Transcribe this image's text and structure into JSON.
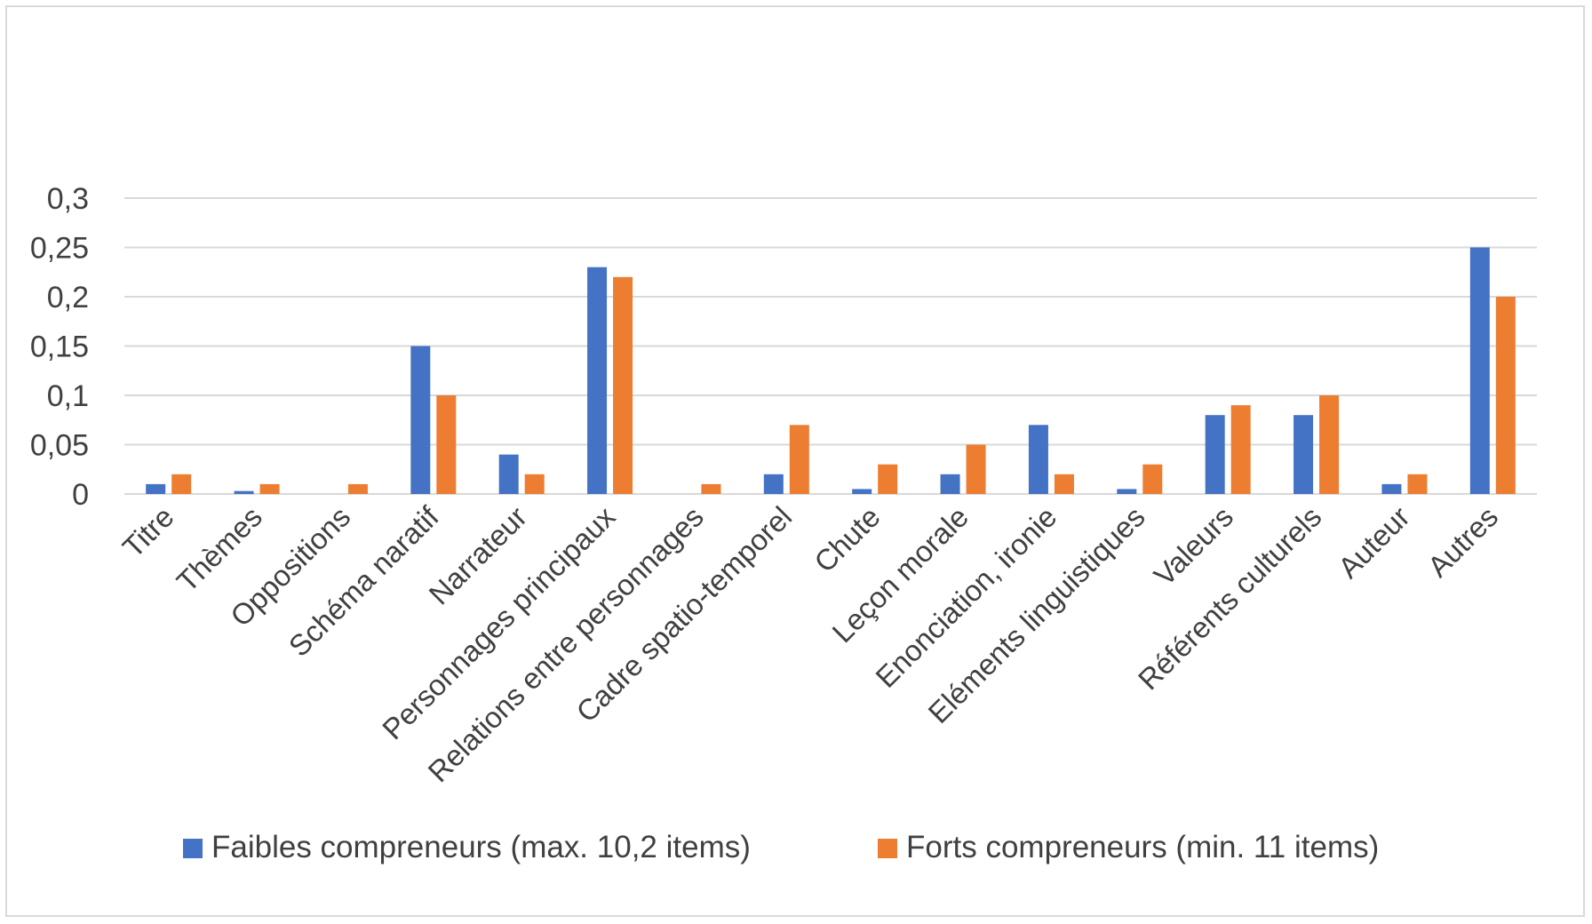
{
  "chart_data": {
    "type": "bar",
    "categories": [
      "Titre",
      "Thèmes",
      "Oppositions",
      "Schéma naratif",
      "Narrateur",
      "Personnages principaux",
      "Relations entre personnages",
      "Cadre spatio-temporel",
      "Chute",
      "Leçon morale",
      "Enonciation, ironie",
      "Eléments linguistiques",
      "Valeurs",
      "Référents culturels",
      "Auteur",
      "Autres"
    ],
    "series": [
      {
        "name": "Faibles compreneurs (max. 10,2 items)",
        "color": "#4472c4",
        "values": [
          0.01,
          0.003,
          0,
          0.15,
          0.04,
          0.23,
          0,
          0.02,
          0.005,
          0.02,
          0.07,
          0.005,
          0.08,
          0.08,
          0.01,
          0.25
        ]
      },
      {
        "name": "Forts compreneurs (min. 11 items)",
        "color": "#ed7d31",
        "values": [
          0.02,
          0.01,
          0.01,
          0.1,
          0.02,
          0.22,
          0.01,
          0.07,
          0.03,
          0.05,
          0.02,
          0.03,
          0.09,
          0.1,
          0.02,
          0.2
        ]
      }
    ],
    "title": "",
    "xlabel": "",
    "ylabel": "",
    "ylim": [
      0,
      0.3
    ],
    "yticks": [
      0,
      0.05,
      0.1,
      0.15,
      0.2,
      0.25,
      0.3
    ],
    "ytick_labels": [
      "0",
      "0,05",
      "0,1",
      "0,15",
      "0,2",
      "0,25",
      "0,3"
    ],
    "grid": true,
    "gridline_color": "#d9d9d9",
    "text_color": "#404040",
    "legend_position": "bottom"
  }
}
